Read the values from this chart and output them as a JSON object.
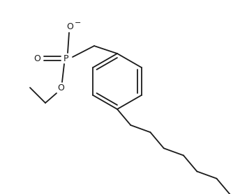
{
  "bg_color": "#ffffff",
  "line_color": "#1a1a1a",
  "line_width": 1.3,
  "fig_width": 3.54,
  "fig_height": 2.79,
  "dpi": 100,
  "xlim": [
    0,
    354
  ],
  "ylim": [
    0,
    279
  ]
}
